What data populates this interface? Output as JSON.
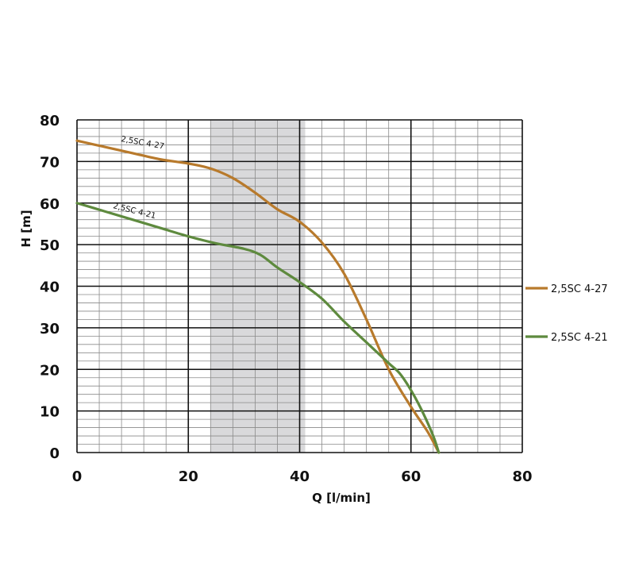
{
  "chart_data": {
    "type": "line",
    "xlabel": "Q [l/min]",
    "ylabel": "H [m]",
    "xlim": [
      0,
      80
    ],
    "ylim": [
      0,
      80
    ],
    "xticks": [
      "0",
      "20",
      "40",
      "60",
      "80"
    ],
    "yticks": [
      "0",
      "10",
      "20",
      "30",
      "40",
      "50",
      "60",
      "70",
      "80"
    ],
    "grid": true,
    "legend_position": "right",
    "shaded_range": {
      "x": [
        24,
        41
      ],
      "color": "#d9d9db"
    },
    "series": [
      {
        "name": "2,5SC 4-27",
        "label": "2,5SC 4-27",
        "color": "#b87a2c",
        "x": [
          0,
          5,
          10,
          15,
          20,
          24,
          28,
          32,
          36,
          40,
          44,
          48,
          52,
          56,
          60,
          63,
          65
        ],
        "y": [
          75,
          73.5,
          72,
          70.5,
          69.5,
          68.3,
          66,
          62.5,
          58.5,
          55.5,
          50.5,
          43,
          32,
          20,
          11,
          5,
          0
        ]
      },
      {
        "name": "2,5SC 4-21",
        "label": "2,5SC 4-21",
        "color": "#5e8a3e",
        "x": [
          0,
          5,
          10,
          15,
          20,
          25,
          30,
          33,
          36,
          40,
          44,
          48,
          52,
          56,
          58,
          60,
          62,
          64,
          65
        ],
        "y": [
          60,
          58,
          56,
          54,
          52,
          50.3,
          49,
          47.5,
          44.5,
          41,
          37,
          31.5,
          26.5,
          21.5,
          19,
          15,
          10,
          4,
          0
        ]
      }
    ]
  }
}
